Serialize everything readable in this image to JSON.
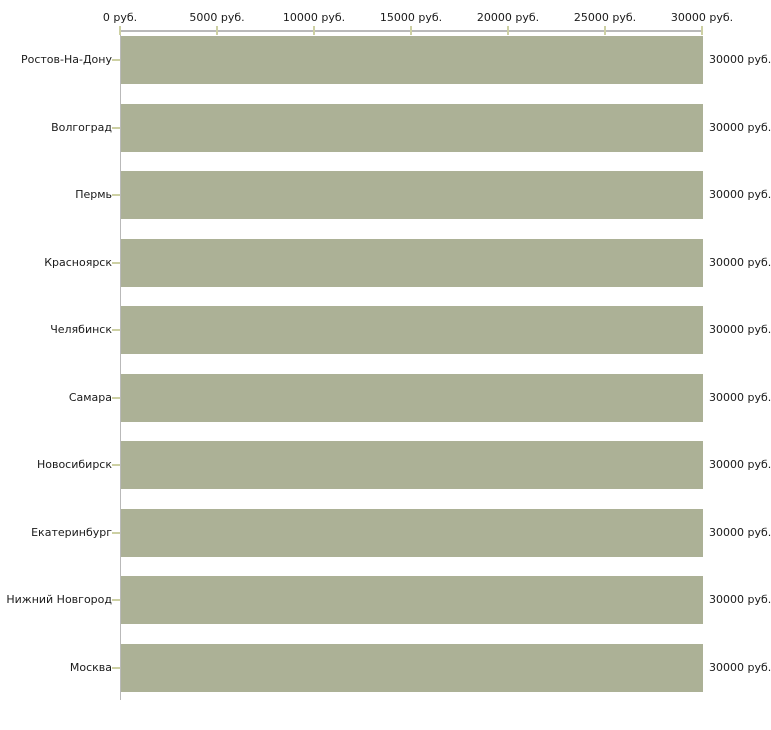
{
  "chart_data": {
    "type": "bar",
    "orientation": "horizontal",
    "title": "",
    "xlabel": "",
    "ylabel": "",
    "xlim": [
      0,
      30000
    ],
    "unit": "руб.",
    "grid": false,
    "legend": false,
    "categories": [
      "Ростов-На-Дону",
      "Волгоград",
      "Пермь",
      "Красноярск",
      "Челябинск",
      "Самара",
      "Новосибирск",
      "Екатеринбург",
      "Нижний Новгород",
      "Москва"
    ],
    "values": [
      30000,
      30000,
      30000,
      30000,
      30000,
      30000,
      30000,
      30000,
      30000,
      30000
    ],
    "value_labels": [
      "30000 руб.",
      "30000 руб.",
      "30000 руб.",
      "30000 руб.",
      "30000 руб.",
      "30000 руб.",
      "30000 руб.",
      "30000 руб.",
      "30000 руб.",
      "30000 руб."
    ],
    "x_ticks": [
      {
        "value": 0,
        "label": "0 руб."
      },
      {
        "value": 5000,
        "label": "5000 руб."
      },
      {
        "value": 10000,
        "label": "10000 руб."
      },
      {
        "value": 15000,
        "label": "15000 руб."
      },
      {
        "value": 20000,
        "label": "20000 руб."
      },
      {
        "value": 25000,
        "label": "25000 руб."
      },
      {
        "value": 30000,
        "label": "30000 руб."
      }
    ],
    "colors": {
      "bar": "#acb196",
      "axis_line": "#b9b9b9",
      "tick_mark": "#cdd0a3",
      "text": "#1a1a1a",
      "background": "#ffffff"
    }
  }
}
